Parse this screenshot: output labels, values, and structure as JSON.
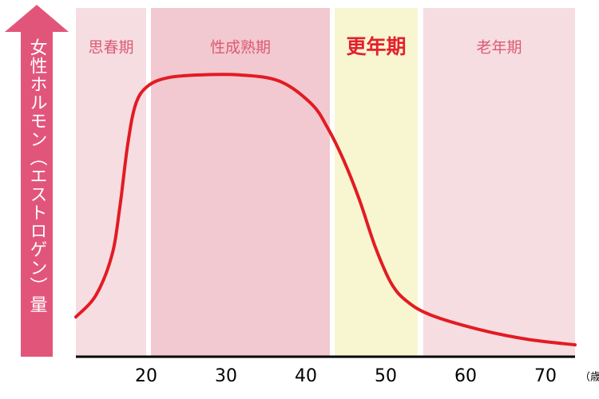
{
  "chart_data": {
    "type": "line",
    "ylabel": "女性ホルモン（エストロゲン）量",
    "xlabel": "（歳）",
    "xlim": [
      11.2,
      73.7
    ],
    "xticks": [
      20,
      30,
      40,
      50,
      60,
      70
    ],
    "ylim": [
      0,
      100
    ],
    "bands": [
      {
        "name": "思春期",
        "range": [
          11.2,
          20
        ],
        "color": "#f6dde1",
        "label_color": "#dc5a74",
        "emphasis": false
      },
      {
        "name": "性成熟期",
        "range": [
          20.6,
          43
        ],
        "color": "#f2c9d0",
        "label_color": "#dc5a74",
        "emphasis": false
      },
      {
        "name": "更年期",
        "range": [
          43.6,
          54
        ],
        "color": "#f7f6d0",
        "label_color": "#e3202e",
        "emphasis": true
      },
      {
        "name": "老年期",
        "range": [
          54.7,
          73.7
        ],
        "color": "#f6dde1",
        "label_color": "#dc5a74",
        "emphasis": false
      }
    ],
    "series": [
      {
        "color": "#e31b23",
        "x": [
          11.2,
          13.7,
          15.7,
          16.7,
          17.7,
          18.7,
          20.2,
          22.7,
          26.7,
          31.7,
          36.7,
          40.7,
          42.7,
          44.7,
          46.7,
          48.7,
          50.7,
          52.7,
          55.7,
          61.7,
          67.7,
          73.7
        ],
        "values": [
          11.4,
          17.6,
          29,
          42.8,
          61,
          72.5,
          77.6,
          80,
          80.8,
          80.8,
          79,
          72.5,
          65.7,
          56.5,
          45,
          31.4,
          21,
          15.8,
          11.9,
          7.8,
          5,
          3.4
        ]
      }
    ],
    "axis_color": "#000000",
    "arrow_color": "#e2557b"
  }
}
